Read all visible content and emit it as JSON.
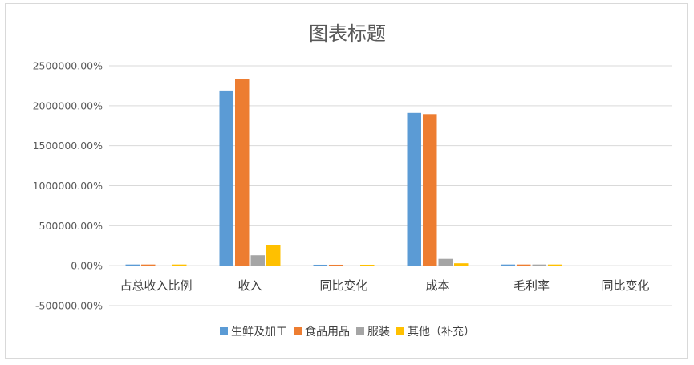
{
  "chart_data": {
    "type": "bar",
    "title": "图表标题",
    "categories": [
      "占总收入比例",
      "收入",
      "同比变化",
      "成本",
      "毛利率",
      "同比变化"
    ],
    "series": [
      {
        "name": "生鲜及加工",
        "color": "#5b9bd5",
        "values": [
          15000,
          2190000,
          12000,
          1910000,
          15000,
          0
        ]
      },
      {
        "name": "食品用品",
        "color": "#ed7d31",
        "values": [
          15000,
          2330000,
          12000,
          1895000,
          15000,
          0
        ]
      },
      {
        "name": "服装",
        "color": "#a5a5a5",
        "values": [
          0,
          130000,
          0,
          85000,
          15000,
          0
        ]
      },
      {
        "name": "其他（补充）",
        "color": "#ffc000",
        "values": [
          15000,
          255000,
          12000,
          30000,
          15000,
          0
        ]
      }
    ],
    "ylim": [
      -500000,
      2500000
    ],
    "yticks": [
      {
        "value": 2500000,
        "label": "2500000.00%"
      },
      {
        "value": 2000000,
        "label": "2000000.00%"
      },
      {
        "value": 1500000,
        "label": "1500000.00%"
      },
      {
        "value": 1000000,
        "label": "1000000.00%"
      },
      {
        "value": 500000,
        "label": "500000.00%"
      },
      {
        "value": 0,
        "label": "0.00%"
      },
      {
        "value": -500000,
        "label": "-500000.00%"
      }
    ],
    "grid": true,
    "legend_position": "bottom"
  }
}
